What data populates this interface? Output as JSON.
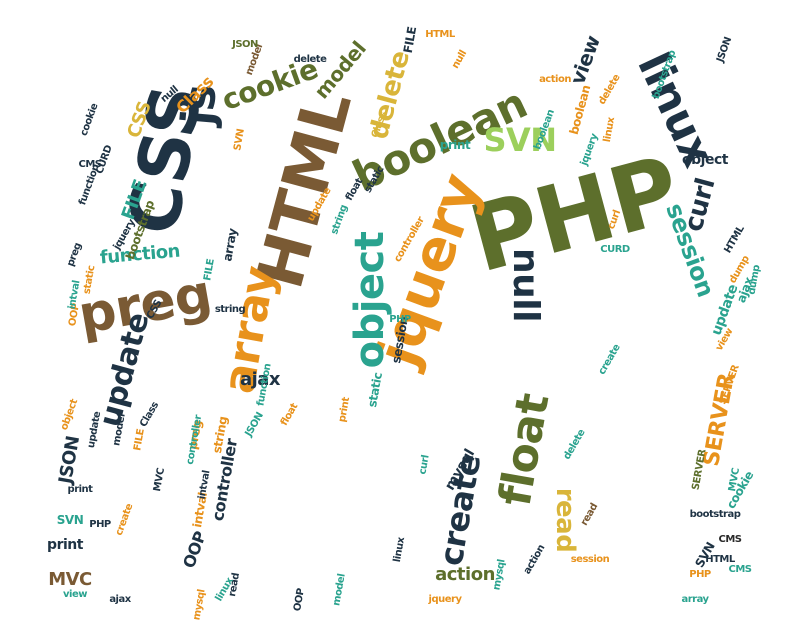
{
  "palette": {
    "navy": "#1f3344",
    "orange": "#e8921c",
    "olive": "#5d6f2c",
    "brown": "#7a5a34",
    "teal": "#2aa38f",
    "lime": "#9ccf5c",
    "dark": "#2a2a2a",
    "gold": "#d9b53a"
  },
  "words": [
    {
      "text": "PHP",
      "color": "olive"
    },
    {
      "text": "HTML",
      "color": "brown"
    },
    {
      "text": "CSS",
      "color": "navy"
    },
    {
      "text": "js",
      "color": "navy"
    },
    {
      "text": "jquery",
      "color": "orange"
    },
    {
      "text": "linux",
      "color": "navy"
    },
    {
      "text": "boolean",
      "color": "olive"
    },
    {
      "text": "preg",
      "color": "brown"
    },
    {
      "text": "array",
      "color": "orange"
    },
    {
      "text": "object",
      "color": "teal"
    },
    {
      "text": "null",
      "color": "navy"
    },
    {
      "text": "float",
      "color": "olive"
    },
    {
      "text": "create",
      "color": "navy"
    },
    {
      "text": "update",
      "color": "navy"
    },
    {
      "text": "SVN",
      "color": "lime"
    },
    {
      "text": "cookie",
      "color": "olive"
    },
    {
      "text": "delete",
      "color": "gold"
    },
    {
      "text": "session",
      "color": "teal"
    },
    {
      "text": "curl",
      "color": "navy"
    },
    {
      "text": "view",
      "color": "navy"
    },
    {
      "text": "model",
      "color": "olive"
    },
    {
      "text": "read",
      "color": "gold"
    },
    {
      "text": "SERVER",
      "color": "orange"
    },
    {
      "text": "function",
      "color": "teal"
    },
    {
      "text": "FILE",
      "color": "teal"
    },
    {
      "text": "Class",
      "color": "orange"
    },
    {
      "text": "CSS",
      "color": "gold"
    },
    {
      "text": "JSON",
      "color": "navy"
    },
    {
      "text": "controller",
      "color": "navy"
    },
    {
      "text": "MVC",
      "color": "brown"
    },
    {
      "text": "print",
      "color": "navy"
    },
    {
      "text": "OOP",
      "color": "navy"
    },
    {
      "text": "action",
      "color": "olive"
    },
    {
      "text": "ajax",
      "color": "navy"
    },
    {
      "text": "intval",
      "color": "orange"
    },
    {
      "text": "static",
      "color": "teal"
    },
    {
      "text": "mysql",
      "color": "navy"
    },
    {
      "text": "string",
      "color": "orange"
    },
    {
      "text": "bootstrap",
      "color": "olive"
    },
    {
      "text": "CMS",
      "color": "dark"
    },
    {
      "text": "HTML",
      "color": "navy"
    },
    {
      "text": "PHP",
      "color": "orange"
    },
    {
      "text": "dump",
      "color": "orange"
    },
    {
      "text": "CURD",
      "color": "navy"
    },
    {
      "text": "jquery",
      "color": "teal"
    },
    {
      "text": "object",
      "color": "navy"
    },
    {
      "text": "linux",
      "color": "orange"
    },
    {
      "text": "update",
      "color": "teal"
    },
    {
      "text": "read",
      "color": "brown"
    },
    {
      "text": "print",
      "color": "teal"
    },
    {
      "text": "cookie",
      "color": "teal"
    },
    {
      "text": "SVN",
      "color": "teal"
    },
    {
      "text": "preg",
      "color": "orange"
    },
    {
      "text": "view",
      "color": "orange"
    },
    {
      "text": "create",
      "color": "teal"
    },
    {
      "text": "FILE",
      "color": "teal"
    },
    {
      "text": "ajax",
      "color": "teal"
    },
    {
      "text": "SERVER",
      "color": "orange"
    },
    {
      "text": "JSON",
      "color": "navy"
    },
    {
      "text": "bootstrap",
      "color": "navy"
    },
    {
      "text": "function",
      "color": "teal"
    },
    {
      "text": "session",
      "color": "navy"
    },
    {
      "text": "delete",
      "color": "navy"
    },
    {
      "text": "SVN",
      "color": "navy"
    },
    {
      "text": "curl",
      "color": "teal"
    },
    {
      "text": "array",
      "color": "navy"
    },
    {
      "text": "update",
      "color": "navy"
    },
    {
      "text": "boolean",
      "color": "orange"
    },
    {
      "text": "model",
      "color": "brown"
    },
    {
      "text": "null",
      "color": "orange"
    },
    {
      "text": "Class",
      "color": "gold"
    },
    {
      "text": "float",
      "color": "navy"
    },
    {
      "text": "JSON",
      "color": "olive"
    },
    {
      "text": "linux",
      "color": "navy"
    },
    {
      "text": "delete",
      "color": "teal"
    },
    {
      "text": "FILE",
      "color": "navy"
    },
    {
      "text": "MVC",
      "color": "teal"
    },
    {
      "text": "intval",
      "color": "navy"
    },
    {
      "text": "static",
      "color": "navy"
    },
    {
      "text": "action",
      "color": "navy"
    },
    {
      "text": "OOP",
      "color": "orange"
    },
    {
      "text": "controller",
      "color": "teal"
    },
    {
      "text": "model",
      "color": "teal"
    },
    {
      "text": "mysql",
      "color": "teal"
    },
    {
      "text": "CMS",
      "color": "navy"
    },
    {
      "text": "HTML",
      "color": "navy"
    },
    {
      "text": "PHP",
      "color": "navy"
    },
    {
      "text": "print",
      "color": "navy"
    },
    {
      "text": "string",
      "color": "teal"
    },
    {
      "text": "CSS",
      "color": "navy"
    },
    {
      "text": "OOP",
      "color": "navy"
    },
    {
      "text": "read",
      "color": "navy"
    },
    {
      "text": "session",
      "color": "orange"
    },
    {
      "text": "dump",
      "color": "teal"
    },
    {
      "text": "boolean",
      "color": "teal"
    },
    {
      "text": "SERVER",
      "color": "olive"
    },
    {
      "text": "null",
      "color": "navy"
    },
    {
      "text": "cookie",
      "color": "navy"
    },
    {
      "text": "action",
      "color": "orange"
    },
    {
      "text": "curl",
      "color": "orange"
    },
    {
      "text": "jquery",
      "color": "navy"
    },
    {
      "text": "SVN",
      "color": "orange"
    },
    {
      "text": "view",
      "color": "teal"
    },
    {
      "text": "float",
      "color": "orange"
    },
    {
      "text": "ajax",
      "color": "navy"
    },
    {
      "text": "create",
      "color": "orange"
    },
    {
      "text": "preg",
      "color": "navy"
    },
    {
      "text": "function",
      "color": "navy"
    },
    {
      "text": "intval",
      "color": "teal"
    },
    {
      "text": "mysql",
      "color": "orange"
    },
    {
      "text": "string",
      "color": "navy"
    },
    {
      "text": "bootstrap",
      "color": "teal"
    },
    {
      "text": "linux",
      "color": "teal"
    },
    {
      "text": "update",
      "color": "orange"
    },
    {
      "text": "static",
      "color": "orange"
    },
    {
      "text": "Class",
      "color": "navy"
    },
    {
      "text": "FILE",
      "color": "orange"
    },
    {
      "text": "controller",
      "color": "orange"
    },
    {
      "text": "CURD",
      "color": "teal"
    },
    {
      "text": "object",
      "color": "orange"
    },
    {
      "text": "array",
      "color": "teal"
    },
    {
      "text": "delete",
      "color": "orange"
    },
    {
      "text": "MVC",
      "color": "navy"
    },
    {
      "text": "JSON",
      "color": "teal"
    },
    {
      "text": "print",
      "color": "orange"
    },
    {
      "text": "model",
      "color": "navy"
    },
    {
      "text": "jquery",
      "color": "orange"
    },
    {
      "text": "CMS",
      "color": "teal"
    },
    {
      "text": "HTML",
      "color": "orange"
    },
    {
      "text": "PHP",
      "color": "teal"
    }
  ]
}
